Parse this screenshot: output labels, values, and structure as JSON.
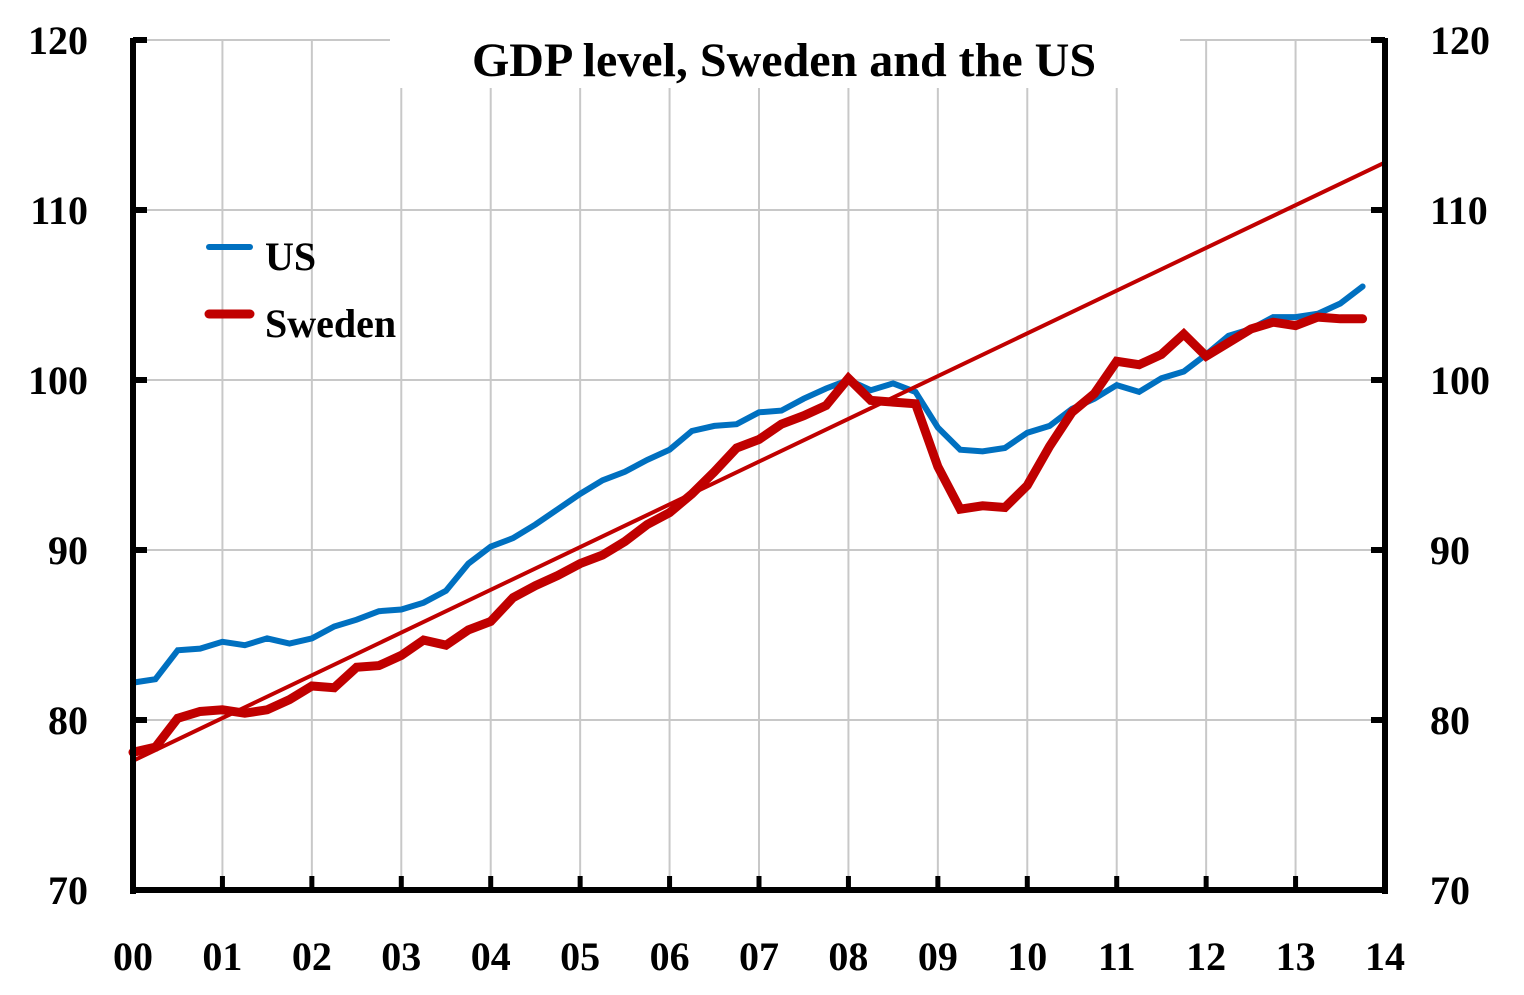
{
  "chart_data": {
    "type": "line",
    "title": "GDP level, Sweden and the US",
    "xlabel": "",
    "ylabel": "",
    "ylim": [
      70,
      120
    ],
    "xlim": [
      0,
      14
    ],
    "yticks": [
      70,
      80,
      90,
      100,
      110,
      120
    ],
    "yticks_right": [
      70,
      80,
      90,
      100,
      110,
      120
    ],
    "xtick_labels": [
      "00",
      "01",
      "02",
      "03",
      "04",
      "05",
      "06",
      "07",
      "08",
      "09",
      "10",
      "11",
      "12",
      "13",
      "14"
    ],
    "grid": true,
    "legend": {
      "placement": "top-left",
      "entries": [
        "US",
        "Sweden"
      ]
    },
    "frequency": "quarterly",
    "x_start": 2000.0,
    "x_step": 0.25,
    "series": [
      {
        "name": "US",
        "color": "#0070C0",
        "values": [
          82.2,
          82.4,
          84.1,
          84.2,
          84.6,
          84.4,
          84.8,
          84.5,
          84.8,
          85.5,
          85.9,
          86.4,
          86.5,
          86.9,
          87.6,
          89.2,
          90.2,
          90.7,
          91.5,
          92.4,
          93.3,
          94.1,
          94.6,
          95.3,
          95.9,
          97.0,
          97.3,
          97.4,
          98.1,
          98.2,
          98.9,
          99.5,
          100.0,
          99.4,
          99.8,
          99.3,
          97.2,
          95.9,
          95.8,
          96.0,
          96.9,
          97.3,
          98.3,
          98.9,
          99.7,
          99.3,
          100.1,
          100.5,
          101.5,
          102.6,
          103.0,
          103.7,
          103.7,
          103.9,
          104.5,
          105.5
        ]
      },
      {
        "name": "Sweden",
        "color": "#C00000",
        "values": [
          78.1,
          78.4,
          80.1,
          80.5,
          80.6,
          80.4,
          80.6,
          81.2,
          82.0,
          81.9,
          83.1,
          83.2,
          83.8,
          84.7,
          84.4,
          85.3,
          85.8,
          87.2,
          87.9,
          88.5,
          89.2,
          89.7,
          90.5,
          91.5,
          92.2,
          93.3,
          94.6,
          96.0,
          96.5,
          97.4,
          97.9,
          98.5,
          100.1,
          98.8,
          98.7,
          98.6,
          94.9,
          92.4,
          92.6,
          92.5,
          93.8,
          96.1,
          98.1,
          99.2,
          101.1,
          100.9,
          101.5,
          102.7,
          101.4,
          102.2,
          103.0,
          103.4,
          103.2,
          103.7,
          103.6,
          103.6
        ]
      },
      {
        "name": "Sweden trend",
        "color": "#C00000",
        "x": [
          0,
          14
        ],
        "values": [
          77.6,
          112.8
        ]
      }
    ]
  }
}
